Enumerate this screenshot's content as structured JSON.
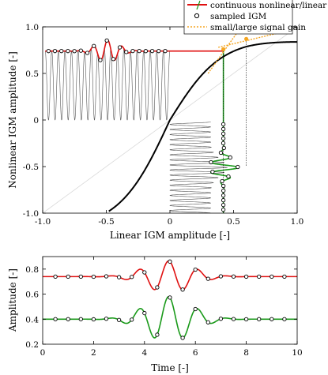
{
  "chart_data": [
    {
      "type": "line",
      "xlabel": "Linear IGM amplitude [-]",
      "ylabel": "Nonlinear IGM amplitude [-]",
      "xlim": [
        -1.0,
        1.0
      ],
      "ylim": [
        -1.0,
        1.0
      ],
      "xticks": [
        "-1.0",
        "-0.5",
        "0",
        "0.5",
        "1.0"
      ],
      "yticks": [
        "-1.0",
        "-0.5",
        "0",
        "0.5",
        "1.0"
      ],
      "grid": false,
      "legend_position": "top",
      "legend": [
        {
          "label": "continuous nonlinear/linear IGM",
          "color": "#e01010"
        },
        {
          "label": "sampled IGM",
          "color": "#000000"
        },
        {
          "label": "small/large signal gain",
          "color": "#f5a623"
        }
      ],
      "transfer_curve": {
        "x": [
          -0.5,
          -0.3,
          0.0,
          0.2,
          0.4,
          0.6,
          0.8,
          1.0
        ],
        "y": [
          -1.0,
          -0.65,
          0.0,
          0.43,
          0.74,
          0.87,
          0.87,
          0.85
        ]
      },
      "input_baseline": 0.0,
      "input_amplitude": -0.45,
      "output_level": 0.74,
      "gain_marker_x": [
        0.42,
        0.6
      ],
      "gain_marker_y": [
        0.76,
        0.87
      ],
      "sample_count": 16
    },
    {
      "type": "line",
      "xlabel": "Time [-]",
      "ylabel": "Amplitude [-]",
      "xlim": [
        0,
        10
      ],
      "ylim": [
        0.2,
        0.9
      ],
      "xticks": [
        "0",
        "2",
        "4",
        "6",
        "8",
        "10"
      ],
      "yticks": [
        "0.2",
        "0.4",
        "0.6",
        "0.8"
      ],
      "grid": false,
      "series": [
        {
          "color": "#e01010",
          "baseline": 0.74,
          "sample_times": [
            0.5,
            1.0,
            1.5,
            2.0,
            2.5,
            3.0,
            3.5,
            4.0,
            4.5,
            5.0,
            5.5,
            6.0,
            6.5,
            7.0,
            7.5,
            8.0,
            8.5,
            9.0,
            9.5
          ]
        },
        {
          "color": "#1a9a1a",
          "baseline": 0.4,
          "sample_times": [
            0.5,
            1.0,
            1.5,
            2.0,
            2.5,
            3.0,
            3.5,
            4.0,
            4.5,
            5.0,
            5.5,
            6.0,
            6.5,
            7.0,
            7.5,
            8.0,
            8.5,
            9.0,
            9.5
          ]
        }
      ]
    }
  ]
}
